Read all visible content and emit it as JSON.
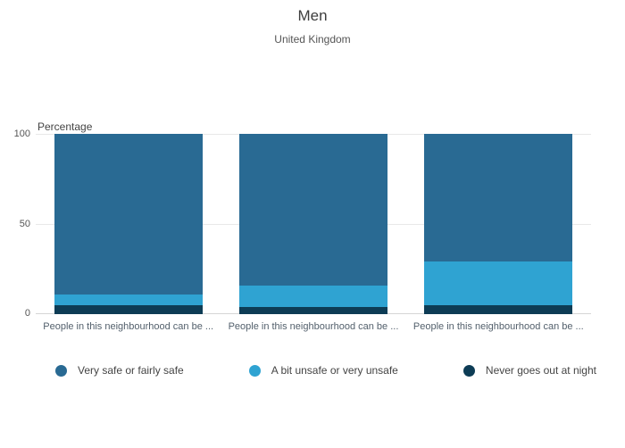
{
  "title": "Men",
  "subtitle": "United Kingdom",
  "axis": {
    "y_title": "Percentage",
    "ticks": [
      "100",
      "50",
      "0"
    ]
  },
  "chart_data": {
    "type": "bar",
    "stacked": true,
    "title": "Men",
    "subtitle": "United Kingdom",
    "ylabel": "Percentage",
    "ylim": [
      0,
      100
    ],
    "grid": true,
    "legend_position": "bottom",
    "categories": [
      "People in this neighbourhood can be ...",
      "People in this neighbourhood can be ...",
      "People in this neighbourhood can be ..."
    ],
    "series": [
      {
        "name": "Very safe or fairly safe",
        "color": "#296a93",
        "values": [
          89,
          84,
          71
        ]
      },
      {
        "name": "A bit unsafe or very unsafe",
        "color": "#2fa3d2",
        "values": [
          6,
          12,
          24
        ]
      },
      {
        "name": "Never goes out at night",
        "color": "#0d3c55",
        "values": [
          5,
          4,
          5
        ]
      }
    ]
  }
}
